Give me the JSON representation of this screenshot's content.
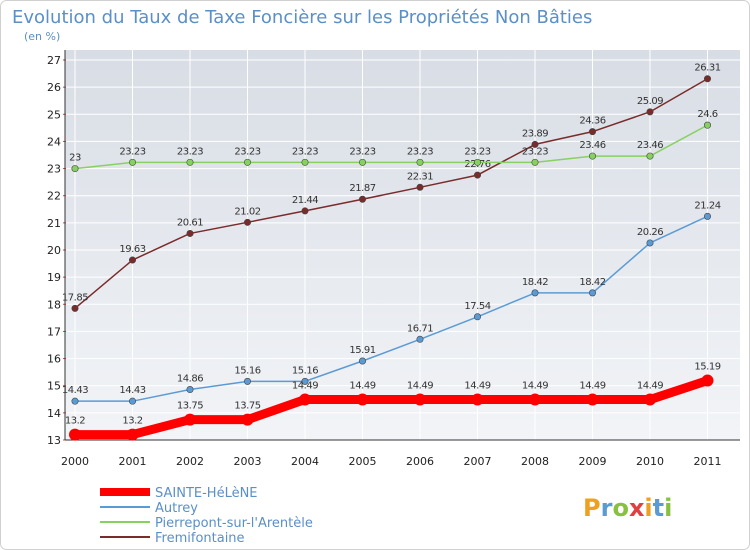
{
  "chart_data": {
    "type": "line",
    "title": "Evolution du Taux de Taxe Foncière sur les Propriétés Non Bâties",
    "subtitle": "(en %)",
    "xlabel": "",
    "ylabel": "",
    "x": [
      "2000",
      "2001",
      "2002",
      "2003",
      "2004",
      "2005",
      "2006",
      "2007",
      "2008",
      "2009",
      "2010",
      "2011"
    ],
    "ylim": [
      13,
      27
    ],
    "yticks": [
      "13",
      "14",
      "15",
      "16",
      "17",
      "18",
      "19",
      "20",
      "21",
      "22",
      "23",
      "24",
      "25",
      "26",
      "27"
    ],
    "grid": true,
    "legend": "bottom-left",
    "series": [
      {
        "name": "SAINTE-HéLèNE",
        "color": "#ff0000",
        "values": [
          13.2,
          13.2,
          13.75,
          13.75,
          14.49,
          14.49,
          14.49,
          14.49,
          14.49,
          14.49,
          14.49,
          15.19
        ],
        "labels": [
          "13.2",
          "13.2",
          "13.75",
          "13.75",
          "14.49",
          "14.49",
          "14.49",
          "14.49",
          "14.49",
          "14.49",
          "14.49",
          "15.19"
        ]
      },
      {
        "name": "Autrey",
        "color": "#5b9bd5",
        "values": [
          14.43,
          14.43,
          14.86,
          15.16,
          15.16,
          15.91,
          16.71,
          17.54,
          18.42,
          18.42,
          20.26,
          21.24
        ],
        "labels": [
          "14.43",
          "14.43",
          "14.86",
          "15.16",
          "15.16",
          "15.91",
          "16.71",
          "17.54",
          "18.42",
          "18.42",
          "20.26",
          "21.24"
        ]
      },
      {
        "name": "Pierrepont-sur-l'Arentèle",
        "color": "#88d160",
        "values": [
          23,
          23.23,
          23.23,
          23.23,
          23.23,
          23.23,
          23.23,
          23.23,
          23.23,
          23.46,
          23.46,
          24.6
        ],
        "labels": [
          "23",
          "23.23",
          "23.23",
          "23.23",
          "23.23",
          "23.23",
          "23.23",
          "23.23",
          "23.23",
          "23.46",
          "23.46",
          "24.6"
        ]
      },
      {
        "name": "Fremifontaine",
        "color": "#7a2b2b",
        "values": [
          17.85,
          19.63,
          20.61,
          21.02,
          21.44,
          21.87,
          22.31,
          22.76,
          23.89,
          24.36,
          25.09,
          26.31
        ],
        "labels": [
          "17.85",
          "19.63",
          "20.61",
          "21.02",
          "21.44",
          "21.87",
          "22.31",
          "22.76",
          "23.89",
          "24.36",
          "25.09",
          "26.31"
        ]
      }
    ]
  },
  "logo": {
    "letters": [
      {
        "ch": "P",
        "color": "#f0a020"
      },
      {
        "ch": "r",
        "color": "#5b9bd5"
      },
      {
        "ch": "o",
        "color": "#88c040"
      },
      {
        "ch": "x",
        "color": "#e04040"
      },
      {
        "ch": "i",
        "color": "#f0a020"
      },
      {
        "ch": "t",
        "color": "#5b9bd5"
      },
      {
        "ch": "i",
        "color": "#88c040"
      }
    ]
  }
}
